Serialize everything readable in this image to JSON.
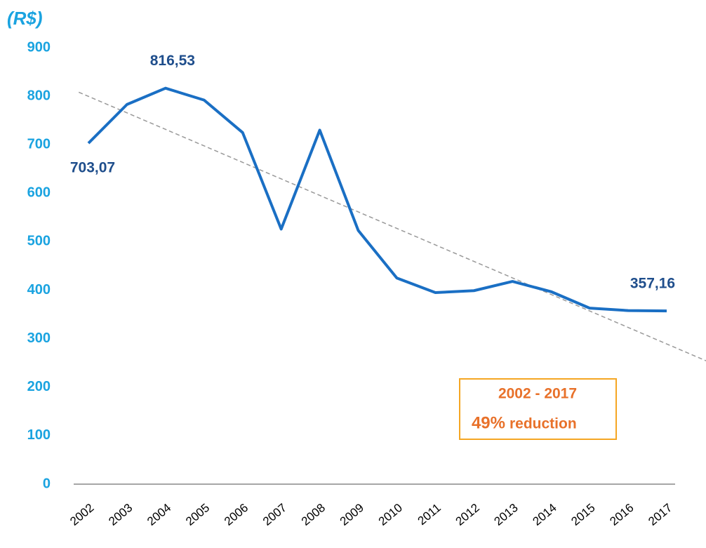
{
  "chart_data": {
    "type": "line",
    "y_label": "(R$)",
    "categories": [
      "2002",
      "2003",
      "2004",
      "2005",
      "2006",
      "2007",
      "2008",
      "2009",
      "2010",
      "2011",
      "2012",
      "2013",
      "2014",
      "2015",
      "2016",
      "2017"
    ],
    "series": [
      {
        "color": "#1a6fc4",
        "values": [
          703.07,
          783,
          816.53,
          792,
          725,
          526,
          730,
          523,
          425,
          395,
          399,
          418,
          397,
          363,
          358,
          357.16
        ],
        "value_labels": [
          "703,07",
          null,
          "816,53",
          null,
          null,
          null,
          null,
          null,
          null,
          null,
          null,
          null,
          null,
          null,
          null,
          "357,16"
        ]
      }
    ],
    "ylim": [
      0,
      900
    ],
    "yticks": [
      0,
      100,
      200,
      300,
      400,
      500,
      600,
      700,
      800,
      900
    ],
    "trendline": true,
    "annotation": {
      "title": "2002 - 2017",
      "value": "49%",
      "text": "reduction"
    }
  }
}
